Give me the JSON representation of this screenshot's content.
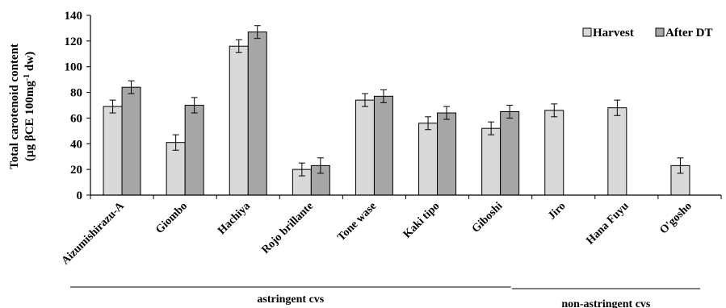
{
  "chart_data": {
    "type": "bar",
    "ylabel_line1": "Total carotenoid content",
    "ylabel_line2_prefix": "(µg βCE 100mg",
    "ylabel_line2_sup": "-1",
    "ylabel_line2_suffix": " dw)",
    "ylim": [
      0,
      140
    ],
    "yticks": [
      0,
      20,
      40,
      60,
      80,
      100,
      120,
      140
    ],
    "grid": false,
    "legend": "top-right",
    "categories": [
      "Aizumishirazu-A",
      "Giombo",
      "Hachiya",
      "Rojo brillante",
      "Tone wase",
      "Kaki tipo",
      "Giboshi",
      "Jiro",
      "Hana Fuyu",
      "O'gosho"
    ],
    "series": [
      {
        "name": "Harvest",
        "color": "#d9d9d9",
        "values": [
          69,
          41,
          116,
          20,
          74,
          56,
          52,
          66,
          68,
          23
        ],
        "errors": [
          5,
          6,
          5,
          5,
          5,
          5,
          5,
          5,
          6,
          6
        ]
      },
      {
        "name": "After DT",
        "color": "#a6a6a6",
        "values": [
          84,
          70,
          127,
          23,
          77,
          64,
          65,
          null,
          null,
          null
        ],
        "errors": [
          5,
          6,
          5,
          6,
          5,
          5,
          5,
          null,
          null,
          null
        ]
      }
    ],
    "groups": [
      {
        "label": "astringent cvs",
        "from": 0,
        "to": 6
      },
      {
        "label": "non-astringent cvs",
        "from": 7,
        "to": 9
      }
    ]
  }
}
